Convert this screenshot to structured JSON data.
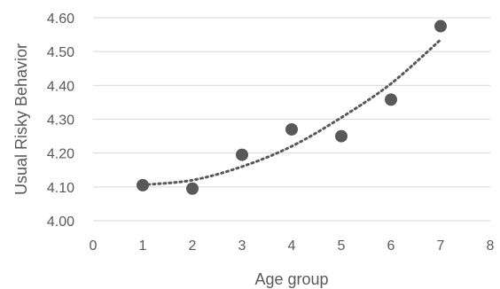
{
  "chart_data": {
    "type": "scatter",
    "xlabel": "Age group",
    "ylabel": "Usual Risky Behavior",
    "xlim": [
      0,
      8
    ],
    "ylim": [
      4.0,
      4.6
    ],
    "x_ticks": [
      0,
      1,
      2,
      3,
      4,
      5,
      6,
      7,
      8
    ],
    "y_ticks": [
      "4.00",
      "4.10",
      "4.20",
      "4.30",
      "4.40",
      "4.50",
      "4.60"
    ],
    "grid": "horizontal",
    "series": [
      {
        "x": [
          1,
          2,
          3,
          4,
          5,
          6,
          7
        ],
        "y": [
          4.105,
          4.095,
          4.195,
          4.27,
          4.25,
          4.358,
          4.575
        ],
        "color": "#595959"
      }
    ],
    "trendline": {
      "type": "polynomial",
      "style": "dotted",
      "color": "#595959",
      "x": [
        1,
        2,
        3,
        4,
        5,
        6,
        7
      ],
      "y": [
        4.106,
        4.12,
        4.16,
        4.22,
        4.305,
        4.405,
        4.535
      ]
    }
  }
}
